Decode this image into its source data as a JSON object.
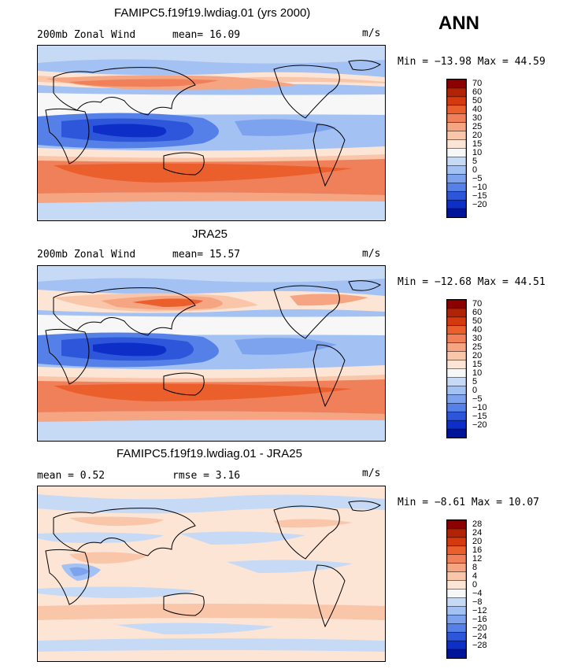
{
  "header": {
    "season": "ANN"
  },
  "panels": [
    {
      "title": "FAMIPC5.f19f19.lwdiag.01 (yrs 2000)",
      "left_label": "200mb Zonal Wind",
      "stat1": "mean=  16.09",
      "stat2": "",
      "units": "m/s",
      "minmax": "Min = −13.98 Max =  44.59",
      "colorbar_ticks": [
        "70",
        "60",
        "50",
        "40",
        "30",
        "25",
        "20",
        "15",
        "10",
        "5",
        "0",
        "−5",
        "−10",
        "−15",
        "−20"
      ],
      "colorbar_colors": [
        "#8b0000",
        "#b22206",
        "#d53a0e",
        "#ea5f2c",
        "#f0805a",
        "#f6a583",
        "#fac6aa",
        "#fde5d6",
        "#f7f7f7",
        "#c6d9f5",
        "#a3c1f3",
        "#7da3ef",
        "#5580e8",
        "#2d56db",
        "#0e2fc7",
        "#00149a"
      ]
    },
    {
      "title": "JRA25",
      "left_label": "200mb Zonal Wind",
      "stat1": "mean=  15.57",
      "stat2": "",
      "units": "m/s",
      "minmax": "Min = −12.68 Max =  44.51",
      "colorbar_ticks": [
        "70",
        "60",
        "50",
        "40",
        "30",
        "25",
        "20",
        "15",
        "10",
        "5",
        "0",
        "−5",
        "−10",
        "−15",
        "−20"
      ],
      "colorbar_colors": [
        "#8b0000",
        "#b22206",
        "#d53a0e",
        "#ea5f2c",
        "#f0805a",
        "#f6a583",
        "#fac6aa",
        "#fde5d6",
        "#f7f7f7",
        "#c6d9f5",
        "#a3c1f3",
        "#7da3ef",
        "#5580e8",
        "#2d56db",
        "#0e2fc7",
        "#00149a"
      ]
    },
    {
      "title": "FAMIPC5.f19f19.lwdiag.01 - JRA25",
      "left_label": "mean =   0.52",
      "stat1": "rmse =   3.16",
      "stat2": "",
      "units": "m/s",
      "minmax": "Min =  −8.61 Max =  10.07",
      "colorbar_ticks": [
        "28",
        "24",
        "20",
        "16",
        "12",
        "8",
        "4",
        "0",
        "−4",
        "−8",
        "−12",
        "−16",
        "−20",
        "−24",
        "−28"
      ],
      "colorbar_colors": [
        "#8b0000",
        "#b22206",
        "#d53a0e",
        "#ea5f2c",
        "#f0805a",
        "#f6a583",
        "#fac6aa",
        "#fde5d6",
        "#f7f7f7",
        "#c6d9f5",
        "#a3c1f3",
        "#7da3ef",
        "#5580e8",
        "#2d56db",
        "#0e2fc7",
        "#00149a"
      ]
    }
  ]
}
